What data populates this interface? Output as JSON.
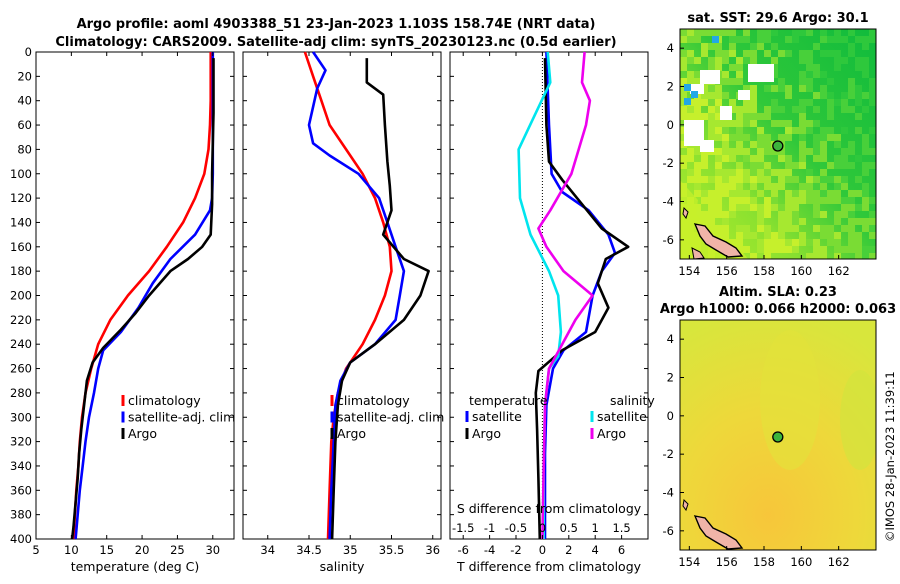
{
  "titles": {
    "line1": "Argo profile: aoml 4903388_51 23-Jan-2023 1.103S 158.74E (NRT data)",
    "line2": "Climatology: CARS2009. Satellite-adj clim: synTS_20230123.nc (0.5d earlier)"
  },
  "watermark": "©IMOS 28-Jan-2023 11:39:11",
  "colors": {
    "climatology": "#ff0000",
    "satellite": "#0000ff",
    "argo": "#000000",
    "sat_salinity": "#00e5ee",
    "argo_salinity": "#ee00ee"
  },
  "chart_data": [
    {
      "type": "line",
      "name": "temperature-profile",
      "xlabel": "temperature (deg C)",
      "ylabel": "",
      "xlim": [
        5,
        33
      ],
      "ylim": [
        400,
        0
      ],
      "xticks": [
        5,
        10,
        15,
        20,
        25,
        30
      ],
      "yticks": [
        0,
        20,
        40,
        60,
        80,
        100,
        120,
        140,
        160,
        180,
        200,
        220,
        240,
        260,
        280,
        300,
        320,
        340,
        360,
        380,
        400
      ],
      "legend": [
        "climatology",
        "satellite-adj. clim",
        "Argo"
      ],
      "legend_position": "lower-right",
      "series": [
        {
          "name": "climatology",
          "color": "#ff0000",
          "points": [
            [
              29.7,
              0
            ],
            [
              29.7,
              40
            ],
            [
              29.6,
              60
            ],
            [
              29.4,
              80
            ],
            [
              28.8,
              100
            ],
            [
              27.5,
              120
            ],
            [
              25.8,
              140
            ],
            [
              23.5,
              160
            ],
            [
              21.0,
              180
            ],
            [
              18.0,
              200
            ],
            [
              15.5,
              220
            ],
            [
              13.8,
              240
            ],
            [
              12.8,
              260
            ],
            [
              12.0,
              280
            ],
            [
              11.5,
              300
            ],
            [
              11.2,
              320
            ],
            [
              11.0,
              340
            ],
            [
              10.7,
              360
            ],
            [
              10.5,
              380
            ],
            [
              10.3,
              400
            ]
          ]
        },
        {
          "name": "satellite-adj. clim",
          "color": "#0000ff",
          "points": [
            [
              30.0,
              0
            ],
            [
              30.0,
              60
            ],
            [
              30.0,
              100
            ],
            [
              29.9,
              120
            ],
            [
              29.6,
              130
            ],
            [
              27.5,
              150
            ],
            [
              24.0,
              170
            ],
            [
              21.5,
              190
            ],
            [
              19.5,
              210
            ],
            [
              17.0,
              230
            ],
            [
              14.5,
              245
            ],
            [
              13.8,
              260
            ],
            [
              13.2,
              280
            ],
            [
              12.5,
              300
            ],
            [
              12.0,
              320
            ],
            [
              11.6,
              340
            ],
            [
              11.2,
              360
            ],
            [
              10.9,
              380
            ],
            [
              10.6,
              400
            ]
          ]
        },
        {
          "name": "Argo",
          "color": "#000000",
          "points": [
            [
              30.1,
              5
            ],
            [
              30.1,
              50
            ],
            [
              29.9,
              100
            ],
            [
              29.9,
              125
            ],
            [
              29.7,
              150
            ],
            [
              28.5,
              160
            ],
            [
              26.5,
              170
            ],
            [
              24.0,
              180
            ],
            [
              21.0,
              200
            ],
            [
              19.0,
              215
            ],
            [
              17.0,
              228
            ],
            [
              14.5,
              243
            ],
            [
              13.0,
              255
            ],
            [
              12.2,
              270
            ],
            [
              11.8,
              290
            ],
            [
              11.4,
              310
            ],
            [
              11.1,
              330
            ],
            [
              10.9,
              350
            ],
            [
              10.6,
              370
            ],
            [
              10.3,
              390
            ],
            [
              10.1,
              400
            ]
          ]
        }
      ]
    },
    {
      "type": "line",
      "name": "salinity-profile",
      "xlabel": "salinity",
      "xlim": [
        33.7,
        36.1
      ],
      "ylim": [
        400,
        0
      ],
      "xticks": [
        34,
        34.5,
        35,
        35.5,
        36
      ],
      "legend": [
        "climatology",
        "satellite-adj. clim",
        "Argo"
      ],
      "legend_position": "lower-right",
      "series": [
        {
          "name": "climatology",
          "color": "#ff0000",
          "points": [
            [
              34.45,
              0
            ],
            [
              34.55,
              20
            ],
            [
              34.65,
              40
            ],
            [
              34.75,
              60
            ],
            [
              34.95,
              80
            ],
            [
              35.15,
              100
            ],
            [
              35.3,
              120
            ],
            [
              35.4,
              140
            ],
            [
              35.48,
              160
            ],
            [
              35.5,
              180
            ],
            [
              35.42,
              200
            ],
            [
              35.3,
              220
            ],
            [
              35.15,
              240
            ],
            [
              34.95,
              260
            ],
            [
              34.85,
              280
            ],
            [
              34.8,
              300
            ],
            [
              34.77,
              320
            ],
            [
              34.75,
              360
            ],
            [
              34.73,
              400
            ]
          ]
        },
        {
          "name": "satellite-adj. clim",
          "color": "#0000ff",
          "points": [
            [
              34.55,
              0
            ],
            [
              34.7,
              15
            ],
            [
              34.6,
              30
            ],
            [
              34.55,
              45
            ],
            [
              34.5,
              60
            ],
            [
              34.55,
              75
            ],
            [
              34.75,
              85
            ],
            [
              35.1,
              100
            ],
            [
              35.35,
              120
            ],
            [
              35.45,
              140
            ],
            [
              35.55,
              160
            ],
            [
              35.65,
              180
            ],
            [
              35.6,
              200
            ],
            [
              35.55,
              220
            ],
            [
              35.3,
              240
            ],
            [
              35.0,
              255
            ],
            [
              34.88,
              270
            ],
            [
              34.82,
              290
            ],
            [
              34.8,
              320
            ],
            [
              34.77,
              360
            ],
            [
              34.75,
              400
            ]
          ]
        },
        {
          "name": "Argo",
          "color": "#000000",
          "points": [
            [
              35.2,
              5
            ],
            [
              35.2,
              25
            ],
            [
              35.4,
              35
            ],
            [
              35.42,
              60
            ],
            [
              35.45,
              90
            ],
            [
              35.48,
              110
            ],
            [
              35.5,
              130
            ],
            [
              35.4,
              150
            ],
            [
              35.65,
              170
            ],
            [
              35.95,
              180
            ],
            [
              35.85,
              200
            ],
            [
              35.65,
              220
            ],
            [
              35.3,
              240
            ],
            [
              35.0,
              255
            ],
            [
              34.9,
              270
            ],
            [
              34.85,
              290
            ],
            [
              34.82,
              320
            ],
            [
              34.8,
              360
            ],
            [
              34.78,
              400
            ]
          ]
        }
      ]
    },
    {
      "type": "line",
      "name": "difference-profile",
      "xlabel": "T difference from climatology",
      "top_axis_label": "S difference from climatology",
      "xlim": [
        -7,
        8
      ],
      "ylim": [
        400,
        0
      ],
      "xticks": [
        -6,
        -4,
        -2,
        0,
        2,
        4,
        6
      ],
      "top_xticks": [
        "-1.5",
        "-1",
        "-0.5",
        "0",
        "0.5",
        "1",
        "1.5"
      ],
      "top_xtick_values_T": [
        -6,
        -4,
        -2,
        0,
        2,
        4,
        6
      ],
      "legend_left": {
        "title": "temperature",
        "items": [
          "satellite",
          "Argo"
        ]
      },
      "legend_right": {
        "title": "salinity",
        "items": [
          "satellite",
          "Argo"
        ]
      },
      "legend_position": "lower-center",
      "series": [
        {
          "name": "temperature satellite",
          "color": "#0000ff",
          "points": [
            [
              0.3,
              0
            ],
            [
              0.5,
              60
            ],
            [
              0.7,
              100
            ],
            [
              1.5,
              115
            ],
            [
              3.5,
              130
            ],
            [
              5.0,
              150
            ],
            [
              5.5,
              165
            ],
            [
              4.5,
              180
            ],
            [
              3.8,
              200
            ],
            [
              3.3,
              230
            ],
            [
              1.6,
              245
            ],
            [
              0.8,
              260
            ],
            [
              0.3,
              290
            ],
            [
              0.2,
              330
            ],
            [
              0.2,
              400
            ]
          ]
        },
        {
          "name": "temperature Argo",
          "color": "#000000",
          "points": [
            [
              0.2,
              5
            ],
            [
              0.3,
              60
            ],
            [
              0.5,
              90
            ],
            [
              1.5,
              105
            ],
            [
              3.0,
              125
            ],
            [
              4.5,
              145
            ],
            [
              6.5,
              160
            ],
            [
              4.8,
              170
            ],
            [
              4.2,
              190
            ],
            [
              5.0,
              210
            ],
            [
              4.0,
              230
            ],
            [
              1.5,
              245
            ],
            [
              -0.3,
              262
            ],
            [
              -0.5,
              280
            ],
            [
              -0.4,
              310
            ],
            [
              -0.3,
              350
            ],
            [
              -0.2,
              400
            ]
          ]
        },
        {
          "name": "salinity satellite",
          "color": "#00e5ee",
          "points": [
            [
              0.4,
              0
            ],
            [
              0.6,
              25
            ],
            [
              -0.5,
              50
            ],
            [
              -1.8,
              80
            ],
            [
              -1.7,
              120
            ],
            [
              -0.9,
              150
            ],
            [
              0.5,
              180
            ],
            [
              1.2,
              200
            ],
            [
              1.4,
              230
            ],
            [
              1.2,
              250
            ],
            [
              0.5,
              260
            ],
            [
              0.2,
              290
            ],
            [
              0.1,
              340
            ],
            [
              0.1,
              400
            ]
          ]
        },
        {
          "name": "salinity Argo",
          "color": "#ee00ee",
          "points": [
            [
              3.2,
              0
            ],
            [
              3.0,
              25
            ],
            [
              3.6,
              40
            ],
            [
              3.3,
              60
            ],
            [
              2.2,
              100
            ],
            [
              0.6,
              130
            ],
            [
              -0.3,
              145
            ],
            [
              0.3,
              160
            ],
            [
              1.6,
              180
            ],
            [
              3.8,
              200
            ],
            [
              2.5,
              220
            ],
            [
              1.5,
              240
            ],
            [
              0.5,
              260
            ],
            [
              0.2,
              290
            ],
            [
              0.1,
              340
            ],
            [
              0.0,
              400
            ]
          ]
        }
      ]
    },
    {
      "type": "heatmap",
      "name": "sst-map",
      "title": "sat. SST: 29.6 Argo: 30.1",
      "xlim": [
        153.5,
        164
      ],
      "ylim": [
        -7,
        5
      ],
      "xticks": [
        154,
        156,
        158,
        160,
        162
      ],
      "yticks": [
        -6,
        -4,
        -2,
        0,
        2,
        4
      ],
      "marker": {
        "lon": 158.74,
        "lat": -1.103
      }
    },
    {
      "type": "heatmap",
      "name": "sla-map",
      "title": "Altim. SLA: 0.23",
      "subtitle": "Argo h1000: 0.066 h2000: 0.063",
      "xlim": [
        153.5,
        164
      ],
      "ylim": [
        -7,
        5
      ],
      "xticks": [
        154,
        156,
        158,
        160,
        162
      ],
      "yticks": [
        -6,
        -4,
        -2,
        0,
        2,
        4
      ],
      "marker": {
        "lon": 158.74,
        "lat": -1.103
      }
    }
  ]
}
